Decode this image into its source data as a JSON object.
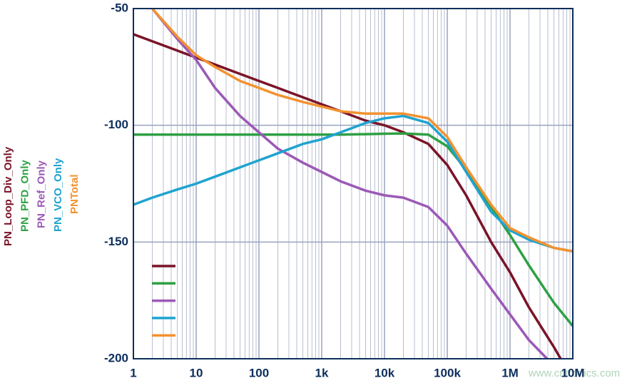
{
  "chart_data": {
    "type": "line",
    "x": [
      1,
      2,
      5,
      10,
      20,
      50,
      100,
      200,
      500,
      1000,
      2000,
      5000,
      10000,
      20000,
      50000,
      100000,
      200000,
      500000,
      1000000,
      2000000,
      5000000,
      10000000
    ],
    "series": [
      {
        "name": "PN_Loop_Div_Only",
        "color": "#7a1428",
        "values": [
          -61,
          -64,
          -68,
          -71,
          -74,
          -78,
          -81,
          -84,
          -88,
          -91,
          -94,
          -98,
          -100,
          -103,
          -108,
          -117,
          -130,
          -150,
          -163,
          -178,
          -195,
          -209
        ]
      },
      {
        "name": "PN_PFD_Only",
        "color": "#2ea043",
        "values": [
          -104,
          -104,
          -104,
          -104,
          -104,
          -104,
          -104,
          -104,
          -104,
          -104,
          -104,
          -103.8,
          -103.6,
          -103.5,
          -104,
          -109,
          -119,
          -135,
          -147,
          -160,
          -176,
          -186
        ]
      },
      {
        "name": "PN_Ref_Only",
        "color": "#9b59b6",
        "values": [
          null,
          -50,
          -63,
          -72,
          -84,
          -96,
          -103,
          -110,
          -116,
          -120,
          -124,
          -128,
          -130,
          -131,
          -135,
          -143,
          -155,
          -170,
          -181,
          -192,
          -203,
          null
        ]
      },
      {
        "name": "PN_VCO_Only",
        "color": "#1fa3d0",
        "values": [
          -134,
          -131,
          -127.5,
          -125,
          -122,
          -118,
          -115,
          -112,
          -108,
          -106,
          -103,
          -99,
          -97,
          -96,
          -99,
          -107,
          -120,
          -137,
          -145,
          -149,
          -152.5,
          -154
        ]
      },
      {
        "name": "PNTotal",
        "color": "#f39230",
        "values": [
          null,
          -50,
          -62,
          -70,
          -75,
          -81,
          -84,
          -87,
          -90,
          -92,
          -94,
          -95,
          -95,
          -95,
          -97,
          -105,
          -118,
          -134,
          -144,
          -148,
          -152.5,
          -154
        ]
      }
    ],
    "xlim": [
      1,
      10000000
    ],
    "xticks": [
      1,
      10,
      100,
      {
        "value": 1000,
        "label": "1k"
      },
      {
        "value": 10000,
        "label": "10k"
      },
      {
        "value": 100000,
        "label": "100k"
      },
      {
        "value": 1000000,
        "label": "1M"
      },
      {
        "value": 10000000,
        "label": "10M"
      }
    ],
    "x_log": true,
    "ylim": [
      -200,
      -50
    ],
    "yticks": [
      -200,
      -150,
      -100,
      -50
    ],
    "grid": true,
    "legend": "lower left",
    "watermark": "www.cntronics.com"
  }
}
